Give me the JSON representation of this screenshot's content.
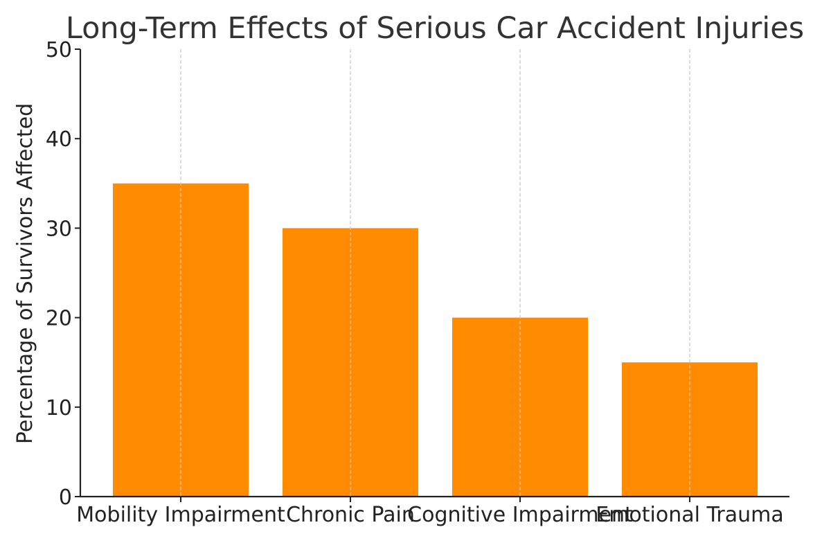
{
  "chart_data": {
    "type": "bar",
    "title": "Long-Term Effects of Serious Car Accident Injuries",
    "xlabel": "",
    "ylabel": "Percentage of Survivors Affected",
    "categories": [
      "Mobility Impairment",
      "Chronic Pain",
      "Cognitive Impairment",
      "Emotional Trauma"
    ],
    "values": [
      35,
      30,
      20,
      15
    ],
    "ylim": [
      0,
      50
    ],
    "yticks": [
      "0",
      "10",
      "20",
      "30",
      "40",
      "50"
    ],
    "grid": "vertical dashed at x ticks",
    "legend": "none",
    "bar_color": "#ff8c00",
    "grid_color": "#c8c8c8",
    "axis_color": "#222222",
    "text_color": "#222222"
  }
}
